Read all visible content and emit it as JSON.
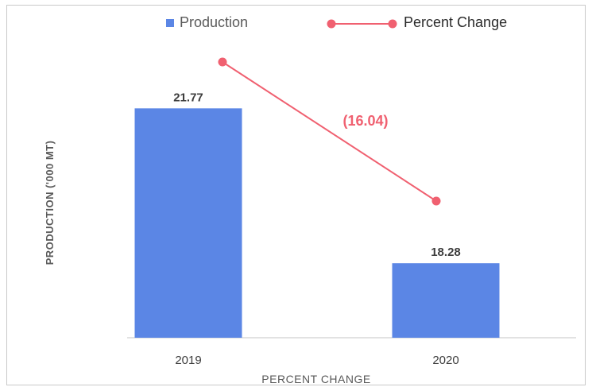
{
  "chart_data": {
    "type": "bar",
    "categories": [
      "2019",
      "2020"
    ],
    "series": [
      {
        "name": "Production",
        "type": "bar",
        "values": [
          21.77,
          18.28
        ],
        "color": "#5b86e5",
        "data_labels": [
          "21.77",
          "18.28"
        ]
      },
      {
        "name": "Percent Change",
        "type": "line",
        "color": "#f06070",
        "annotation": "(16.04)"
      }
    ],
    "xlabel": "PERCENT CHANGE",
    "ylabel": "PRODUCTION ('000 MT)",
    "ylim": [
      16.6,
      22.6
    ],
    "grid": false,
    "legend_position": "top-center",
    "colors": {
      "axis_text": "#5a5a5a",
      "label_text": "#3d3d3d",
      "annotation": "#f06070",
      "baseline": "#d9d9d9"
    }
  }
}
